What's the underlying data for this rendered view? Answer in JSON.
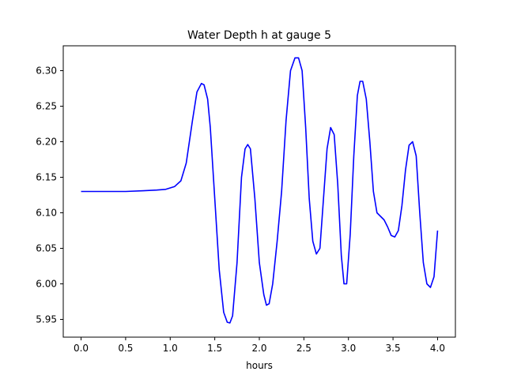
{
  "chart_data": {
    "type": "line",
    "title": "Water Depth h at gauge 5",
    "xlabel": "hours",
    "ylabel": "",
    "xlim": [
      -0.2,
      4.2
    ],
    "ylim": [
      5.925,
      6.335
    ],
    "x_ticks": [
      "0.0",
      "0.5",
      "1.0",
      "1.5",
      "2.0",
      "2.5",
      "3.0",
      "3.5",
      "4.0"
    ],
    "y_ticks": [
      "5.95",
      "6.00",
      "6.05",
      "6.10",
      "6.15",
      "6.20",
      "6.25",
      "6.30"
    ],
    "grid": false,
    "series": [
      {
        "color": "#0000ff",
        "x": [
          0.0,
          0.3,
          0.5,
          0.7,
          0.85,
          0.95,
          1.05,
          1.12,
          1.18,
          1.25,
          1.3,
          1.35,
          1.38,
          1.42,
          1.45,
          1.5,
          1.55,
          1.6,
          1.64,
          1.67,
          1.7,
          1.75,
          1.8,
          1.84,
          1.87,
          1.9,
          1.95,
          2.0,
          2.05,
          2.08,
          2.11,
          2.15,
          2.2,
          2.25,
          2.3,
          2.35,
          2.4,
          2.44,
          2.48,
          2.52,
          2.56,
          2.6,
          2.64,
          2.68,
          2.72,
          2.76,
          2.8,
          2.84,
          2.88,
          2.92,
          2.95,
          2.98,
          3.02,
          3.06,
          3.1,
          3.13,
          3.16,
          3.2,
          3.24,
          3.28,
          3.32,
          3.36,
          3.4,
          3.44,
          3.48,
          3.52,
          3.56,
          3.6,
          3.64,
          3.68,
          3.72,
          3.76,
          3.8,
          3.84,
          3.88,
          3.92,
          3.96,
          4.0
        ],
        "y": [
          6.13,
          6.13,
          6.13,
          6.131,
          6.132,
          6.133,
          6.137,
          6.145,
          6.17,
          6.23,
          6.27,
          6.282,
          6.28,
          6.26,
          6.22,
          6.12,
          6.02,
          5.96,
          5.946,
          5.945,
          5.955,
          6.03,
          6.15,
          6.19,
          6.196,
          6.19,
          6.12,
          6.03,
          5.985,
          5.97,
          5.972,
          6.0,
          6.06,
          6.13,
          6.23,
          6.3,
          6.318,
          6.318,
          6.3,
          6.22,
          6.12,
          6.06,
          6.042,
          6.05,
          6.12,
          6.19,
          6.22,
          6.21,
          6.14,
          6.04,
          6.0,
          6.0,
          6.07,
          6.18,
          6.265,
          6.285,
          6.285,
          6.26,
          6.2,
          6.13,
          6.1,
          6.095,
          6.09,
          6.08,
          6.068,
          6.066,
          6.075,
          6.11,
          6.16,
          6.195,
          6.2,
          6.18,
          6.1,
          6.03,
          6.0,
          5.995,
          6.01,
          6.075
        ]
      }
    ]
  }
}
